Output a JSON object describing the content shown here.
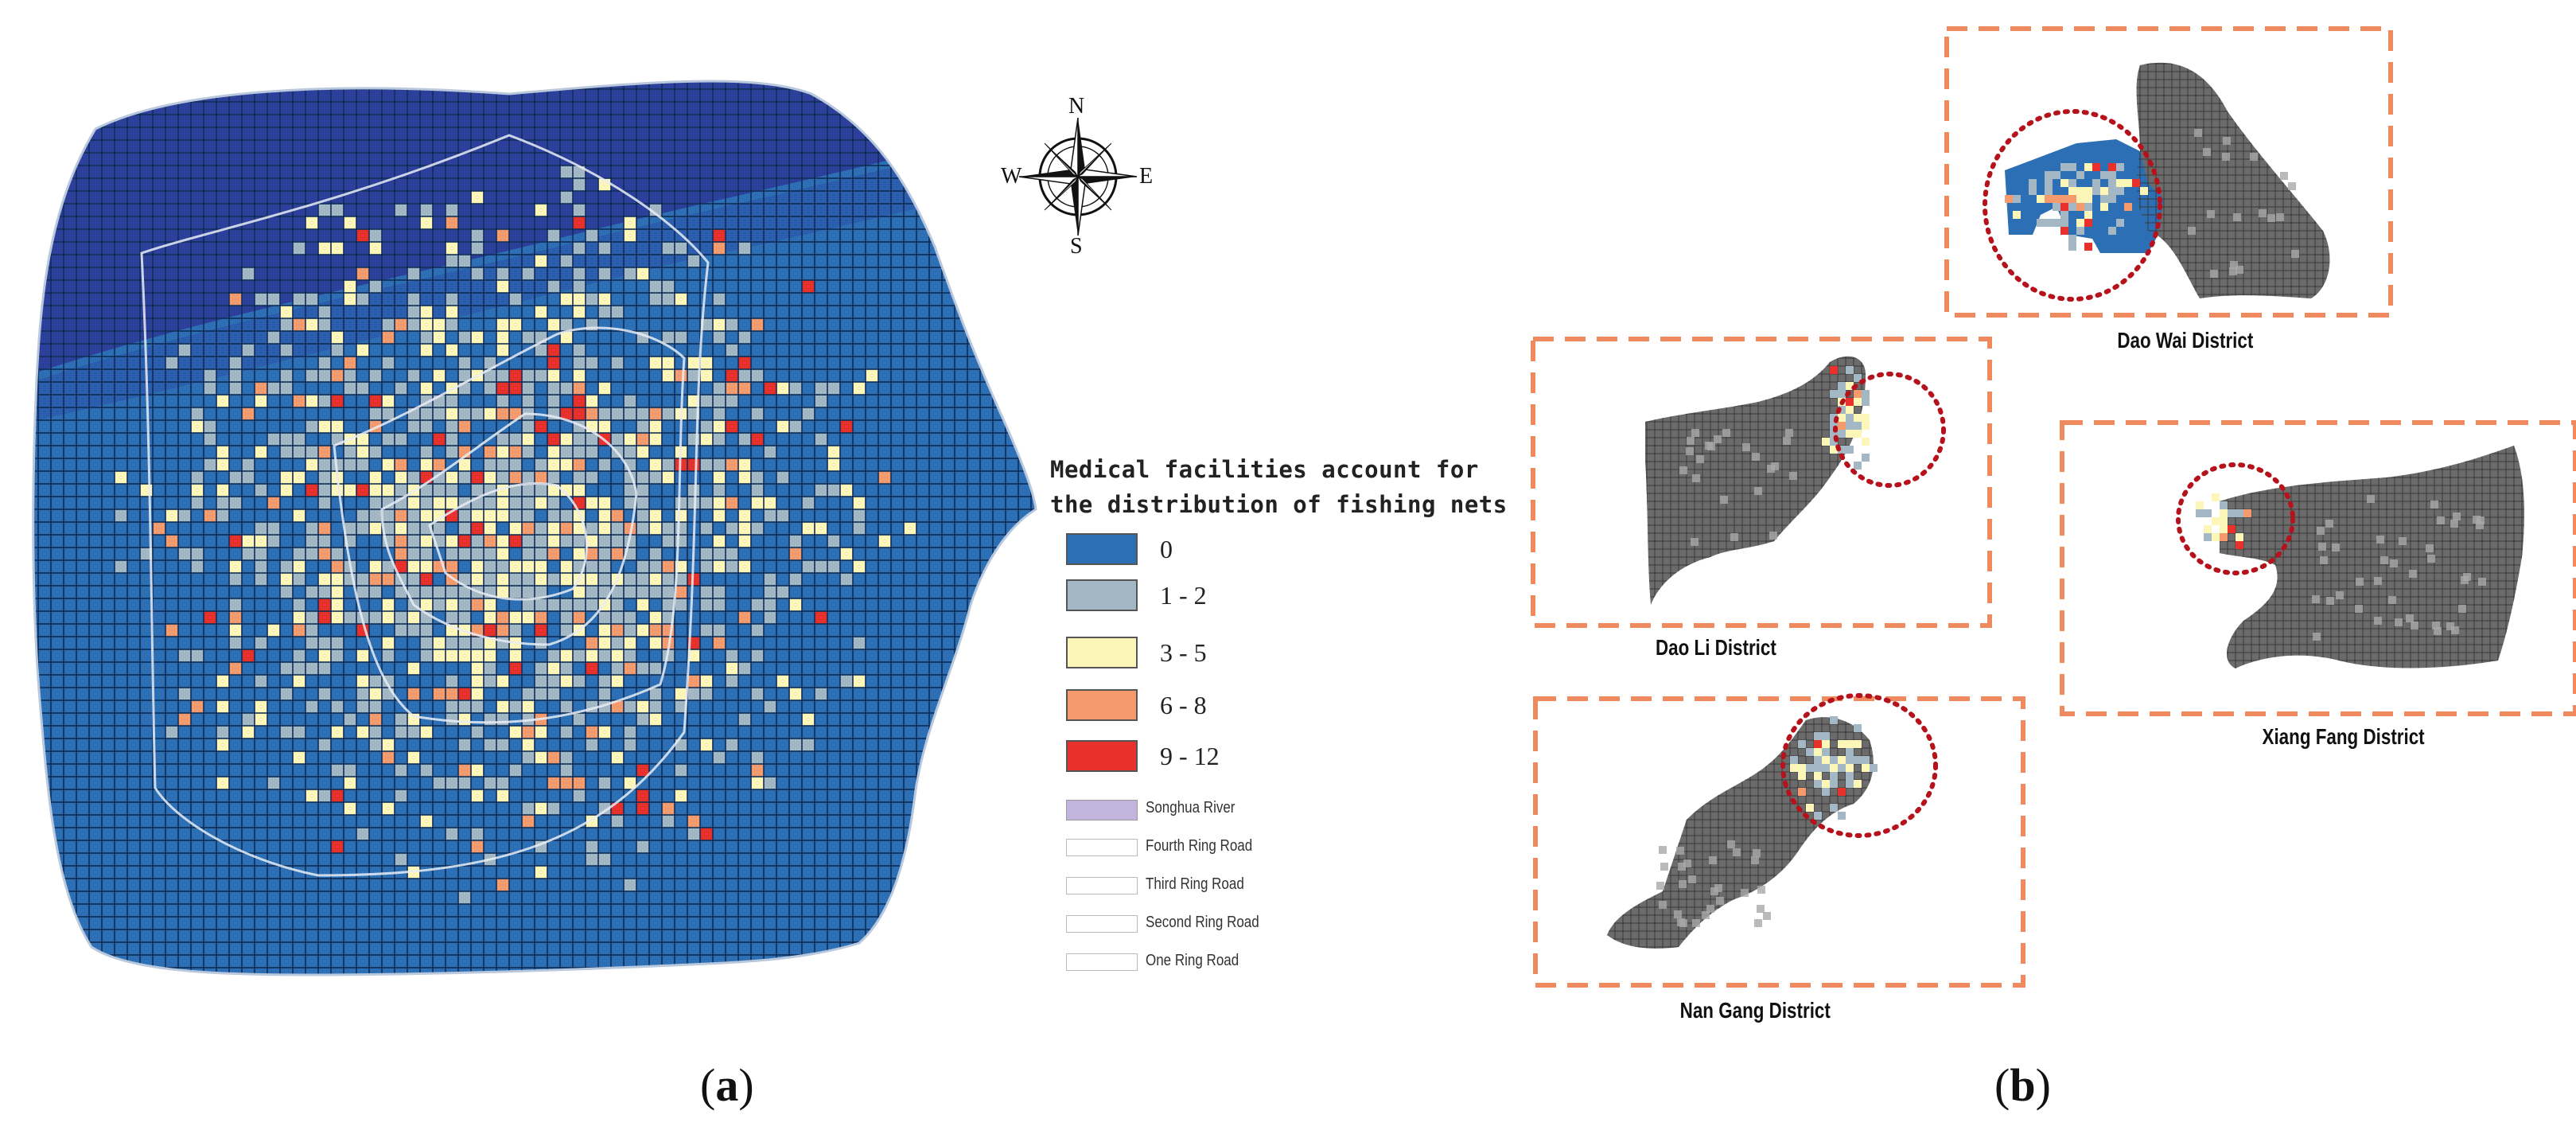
{
  "legend": {
    "title_line1": "Medical facilities account for",
    "title_line2": "the distribution of fishing nets",
    "classes": [
      {
        "label": "0",
        "color": "#2c6fb5"
      },
      {
        "label": "1 - 2",
        "color": "#a3b7c4"
      },
      {
        "label": "3 - 5",
        "color": "#fdf6b9"
      },
      {
        "label": "6 - 8",
        "color": "#f59a6d"
      },
      {
        "label": "9 - 12",
        "color": "#e8312b"
      }
    ],
    "river": {
      "label": "Songhua River",
      "color": "#c3b4de"
    },
    "roads": [
      "Fourth Ring Road",
      "Third Ring Road",
      "Second Ring Road",
      "One Ring Road"
    ]
  },
  "compass": {
    "n": "N",
    "s": "S",
    "e": "E",
    "w": "W"
  },
  "districts": {
    "dao_wai": "Dao Wai District",
    "dao_li": "Dao Li District",
    "xiang_fang": "Xiang Fang District",
    "nan_gang": "Nan Gang District"
  },
  "panels": {
    "a": "a",
    "b": "b"
  },
  "colors": {
    "grid_base": "#2c6fb5",
    "river_band": "#2c3f9a",
    "district_gray": "#6b6b6b",
    "frame": "#ef8a5f",
    "highlight_circle": "#b5121b"
  }
}
